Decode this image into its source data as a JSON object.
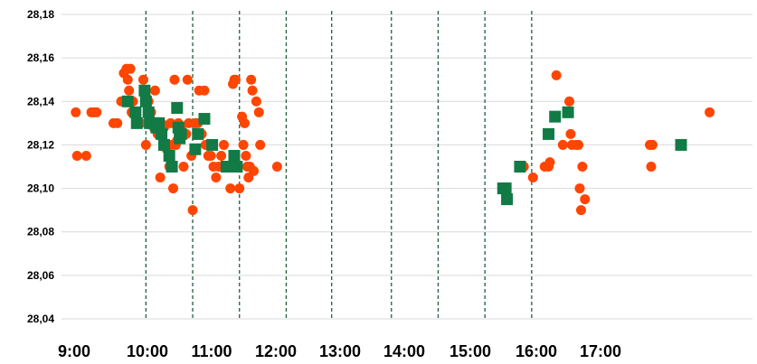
{
  "chart_data": {
    "type": "scatter",
    "title": "",
    "xlabel": "",
    "ylabel": "",
    "xlim": [
      "8:55",
      "17:47"
    ],
    "ylim": [
      28.04,
      28.18
    ],
    "y_ticks": [
      "28,04",
      "28,06",
      "28,08",
      "28,10",
      "28,12",
      "28,14",
      "28,16",
      "28,18"
    ],
    "x_tick_labels": [
      "9:00",
      "10:00",
      "11:00",
      "12:00",
      "13:00",
      "14:00",
      "15:00",
      "16:00",
      "17:00"
    ],
    "hour_dividers": [
      "10:00",
      "10:36",
      "11:12",
      "11:48",
      "12:23",
      "13:09",
      "13:45",
      "14:21",
      "14:57"
    ],
    "grid": "horizontal",
    "legend": "none",
    "colors": {
      "orange": "#ff4500",
      "green": "#117a45",
      "divider": "#1f5f3a",
      "grid": "#d9d9d9"
    },
    "series": [
      {
        "marker": "circle",
        "color": "#ff4500",
        "points": [
          [
            "9:06",
            28.135
          ],
          [
            "9:07",
            28.115
          ],
          [
            "9:14",
            28.115
          ],
          [
            "9:18",
            28.135
          ],
          [
            "9:20",
            28.135
          ],
          [
            "9:22",
            28.135
          ],
          [
            "9:35",
            28.13
          ],
          [
            "9:38",
            28.13
          ],
          [
            "9:41",
            28.14
          ],
          [
            "9:43",
            28.153
          ],
          [
            "9:45",
            28.155
          ],
          [
            "9:46",
            28.15
          ],
          [
            "9:47",
            28.145
          ],
          [
            "9:48",
            28.155
          ],
          [
            "9:49",
            28.135
          ],
          [
            "9:50",
            28.14
          ],
          [
            "9:52",
            28.135
          ],
          [
            "9:54",
            28.13
          ],
          [
            "9:56",
            28.13
          ],
          [
            "9:58",
            28.15
          ],
          [
            "10:00",
            28.12
          ],
          [
            "10:02",
            28.14
          ],
          [
            "10:04",
            28.135
          ],
          [
            "10:06",
            28.128
          ],
          [
            "10:07",
            28.145
          ],
          [
            "10:08",
            28.13
          ],
          [
            "10:09",
            28.125
          ],
          [
            "10:11",
            28.105
          ],
          [
            "10:12",
            28.13
          ],
          [
            "10:14",
            28.128
          ],
          [
            "10:16",
            28.118
          ],
          [
            "10:18",
            28.11
          ],
          [
            "10:19",
            28.13
          ],
          [
            "10:20",
            28.12
          ],
          [
            "10:21",
            28.1
          ],
          [
            "10:22",
            28.15
          ],
          [
            "10:23",
            28.12
          ],
          [
            "10:24",
            28.122
          ],
          [
            "10:25",
            28.13
          ],
          [
            "10:27",
            28.128
          ],
          [
            "10:29",
            28.11
          ],
          [
            "10:31",
            28.125
          ],
          [
            "10:32",
            28.15
          ],
          [
            "10:33",
            28.13
          ],
          [
            "10:35",
            28.115
          ],
          [
            "10:36",
            28.09
          ],
          [
            "10:38",
            28.13
          ],
          [
            "10:40",
            28.13
          ],
          [
            "10:41",
            28.145
          ],
          [
            "10:43",
            28.125
          ],
          [
            "10:45",
            28.145
          ],
          [
            "10:46",
            28.12
          ],
          [
            "10:48",
            28.115
          ],
          [
            "10:50",
            28.115
          ],
          [
            "10:52",
            28.11
          ],
          [
            "10:54",
            28.105
          ],
          [
            "10:56",
            28.11
          ],
          [
            "10:58",
            28.115
          ],
          [
            "11:00",
            28.12
          ],
          [
            "11:03",
            28.11
          ],
          [
            "11:05",
            28.1
          ],
          [
            "11:07",
            28.148
          ],
          [
            "11:08",
            28.15
          ],
          [
            "11:09",
            28.15
          ],
          [
            "11:10",
            28.11
          ],
          [
            "11:12",
            28.1
          ],
          [
            "11:14",
            28.133
          ],
          [
            "11:15",
            28.12
          ],
          [
            "11:16",
            28.13
          ],
          [
            "11:17",
            28.115
          ],
          [
            "11:18",
            28.11
          ],
          [
            "11:19",
            28.105
          ],
          [
            "11:20",
            28.11
          ],
          [
            "11:21",
            28.15
          ],
          [
            "11:22",
            28.145
          ],
          [
            "11:23",
            28.108
          ],
          [
            "11:25",
            28.14
          ],
          [
            "11:27",
            28.135
          ],
          [
            "11:28",
            28.12
          ],
          [
            "11:41",
            28.11
          ],
          [
            "14:51",
            28.11
          ],
          [
            "14:58",
            28.105
          ],
          [
            "15:07",
            28.11
          ],
          [
            "15:10",
            28.11
          ],
          [
            "15:11",
            28.112
          ],
          [
            "15:16",
            28.152
          ],
          [
            "15:21",
            28.12
          ],
          [
            "15:26",
            28.14
          ],
          [
            "15:27",
            28.125
          ],
          [
            "15:28",
            28.12
          ],
          [
            "15:31",
            28.12
          ],
          [
            "15:33",
            28.12
          ],
          [
            "15:34",
            28.1
          ],
          [
            "15:35",
            28.09
          ],
          [
            "15:36",
            28.11
          ],
          [
            "15:38",
            28.095
          ],
          [
            "16:28",
            28.12
          ],
          [
            "16:29",
            28.11
          ],
          [
            "16:30",
            28.12
          ],
          [
            "17:14",
            28.135
          ]
        ]
      },
      {
        "marker": "square",
        "color": "#117a45",
        "points": [
          [
            "9:46",
            28.14
          ],
          [
            "9:52",
            28.135
          ],
          [
            "9:53",
            28.13
          ],
          [
            "9:59",
            28.145
          ],
          [
            "10:00",
            28.14
          ],
          [
            "10:02",
            28.135
          ],
          [
            "10:03",
            28.13
          ],
          [
            "10:06",
            28.13
          ],
          [
            "10:08",
            28.128
          ],
          [
            "10:10",
            28.13
          ],
          [
            "10:12",
            28.125
          ],
          [
            "10:14",
            28.12
          ],
          [
            "10:18",
            28.115
          ],
          [
            "10:20",
            28.11
          ],
          [
            "10:24",
            28.137
          ],
          [
            "10:25",
            28.128
          ],
          [
            "10:26",
            28.123
          ],
          [
            "10:27",
            28.125
          ],
          [
            "10:38",
            28.118
          ],
          [
            "10:40",
            28.125
          ],
          [
            "10:45",
            28.132
          ],
          [
            "10:51",
            28.12
          ],
          [
            "11:02",
            28.11
          ],
          [
            "11:08",
            28.115
          ],
          [
            "11:10",
            28.11
          ],
          [
            "14:35",
            28.1
          ],
          [
            "14:37",
            28.1
          ],
          [
            "14:38",
            28.095
          ],
          [
            "14:48",
            28.11
          ],
          [
            "15:10",
            28.125
          ],
          [
            "15:15",
            28.133
          ],
          [
            "15:25",
            28.135
          ],
          [
            "16:52",
            28.12
          ]
        ]
      }
    ]
  }
}
